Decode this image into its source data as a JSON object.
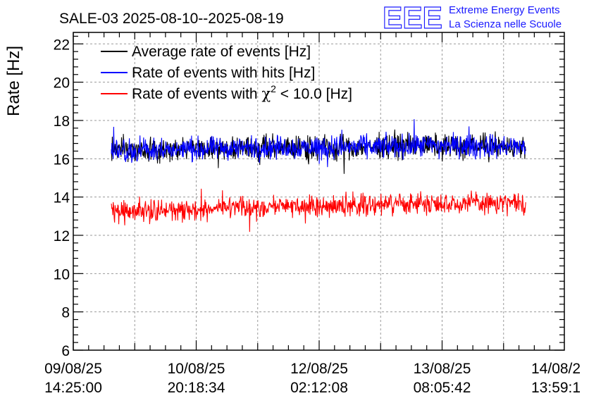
{
  "chart_data": {
    "type": "line",
    "title": "SALE-03 2025-08-10--2025-08-19",
    "ylabel": "Rate [Hz]",
    "xlabel": "",
    "ylim": [
      6,
      22.6
    ],
    "yticks": [
      "6",
      "8",
      "10",
      "12",
      "14",
      "16",
      "18",
      "20",
      "22"
    ],
    "xticks": [
      {
        "date": "09/08/25",
        "time": "14:25:00"
      },
      {
        "date": "10/08/25",
        "time": "20:18:34"
      },
      {
        "date": "12/08/25",
        "time": "02:12:08"
      },
      {
        "date": "13/08/25",
        "time": "08:05:42"
      },
      {
        "date": "14/08/2",
        "time": "13:59:1"
      }
    ],
    "x_range_index": [
      0,
      4
    ],
    "data_start_index": 0.31,
    "data_end_index": 3.68,
    "grid": true,
    "legend_position": "top-left",
    "series": [
      {
        "name": "Average rate of events [Hz]",
        "color": "#000000",
        "samples_ref": "16-17 Hz band, hidden under the blue trace",
        "mean_by_segment": [
          16.4,
          16.5,
          16.6,
          16.6,
          16.7,
          16.6
        ],
        "noise_halfwidth": 0.9
      },
      {
        "name": "Rate of events with hits [Hz]",
        "color": "#0000ff",
        "mean_by_segment": [
          16.4,
          16.5,
          16.6,
          16.6,
          16.7,
          16.6
        ],
        "noise_halfwidth": 0.9,
        "min": 14.5,
        "max": 18.7
      },
      {
        "name": "Rate of events with χ² < 10.0 [Hz]",
        "color": "#ff0000",
        "mean_by_segment": [
          13.2,
          13.3,
          13.5,
          13.6,
          13.7,
          13.6
        ],
        "noise_halfwidth": 0.8,
        "min": 11.6,
        "max": 15.2
      }
    ],
    "legend": [
      {
        "label_main": "Rate of events with ",
        "label_chi": "χ",
        "label_sup": "2",
        "label_rest": " < 10.0 [Hz]"
      }
    ]
  },
  "legend_labels": {
    "avg": "Average rate of events [Hz]",
    "hits": "Rate of events with hits [Hz]",
    "chi_prefix": "Rate of events with ",
    "chi_symbol": "χ",
    "chi_sup": "2",
    "chi_suffix": " < 10.0 [Hz]"
  },
  "logo": {
    "letters": "EEE",
    "line1": "Extreme Energy Events",
    "line2": "La Scienza nelle Scuole",
    "color": "#1a1aff"
  }
}
